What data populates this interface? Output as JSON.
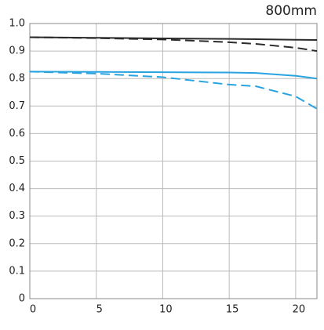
{
  "chart_data": {
    "type": "line",
    "title": "800mm",
    "x": [
      0,
      5,
      10,
      15,
      17,
      20,
      21.6
    ],
    "series": [
      {
        "color": "#2b2b2b",
        "dashed": false,
        "values": [
          0.95,
          0.948,
          0.946,
          0.944,
          0.943,
          0.941,
          0.94
        ]
      },
      {
        "color": "#2b2b2b",
        "dashed": true,
        "values": [
          0.95,
          0.947,
          0.942,
          0.932,
          0.926,
          0.912,
          0.9
        ]
      },
      {
        "color": "#29a3e0",
        "dashed": false,
        "values": [
          0.825,
          0.824,
          0.823,
          0.822,
          0.82,
          0.81,
          0.8
        ]
      },
      {
        "color": "#29a3e0",
        "dashed": true,
        "values": [
          0.825,
          0.818,
          0.805,
          0.778,
          0.772,
          0.735,
          0.69
        ]
      }
    ],
    "xlim": [
      0,
      21.6
    ],
    "xticks": [
      0,
      5,
      10,
      15,
      20
    ],
    "ylim": [
      0,
      1
    ],
    "yticks": [
      0,
      0.1,
      0.2,
      0.3,
      0.4,
      0.5,
      0.6,
      0.7,
      0.8,
      0.9,
      {
        "value": 1,
        "label": "1.0"
      }
    ],
    "grid": true
  }
}
